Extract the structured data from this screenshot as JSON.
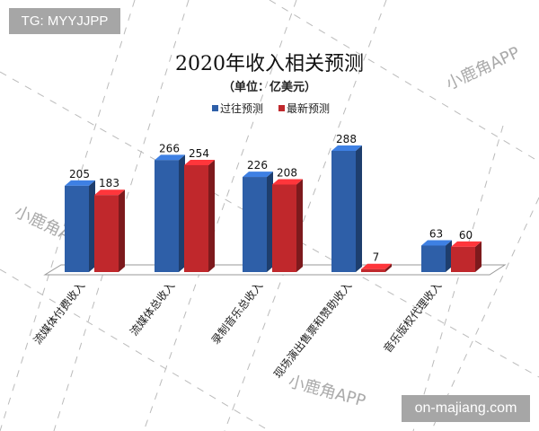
{
  "chart_data": {
    "type": "bar",
    "title": "2020年收入相关预测",
    "subtitle": "（单位：亿美元）",
    "xlabel": "",
    "ylabel": "",
    "ylim": [
      0,
      300
    ],
    "grid": false,
    "legend_position": "top-center",
    "categories": [
      "流媒体付费收入",
      "流媒体总收入",
      "录制音乐总收入",
      "现场演出售票和赞助收入",
      "音乐版权代理收入"
    ],
    "series": [
      {
        "name": "过往预测",
        "color": "#2e5fa8",
        "values": [
          205,
          266,
          226,
          288,
          63
        ]
      },
      {
        "name": "最新预测",
        "color": "#c0282c",
        "values": [
          183,
          254,
          208,
          7,
          60
        ]
      }
    ]
  },
  "overlays": {
    "tg_label": "TG: MYYJJPP",
    "site_label": "on-majiang.com",
    "watermark": "小鹿角APP"
  }
}
